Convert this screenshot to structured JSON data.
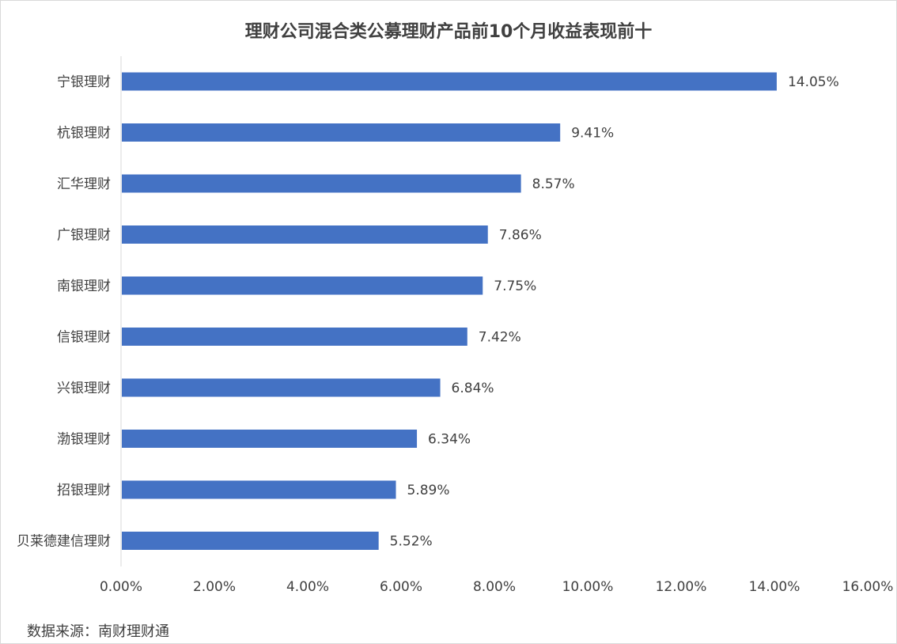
{
  "chart_data": {
    "type": "bar",
    "orientation": "horizontal",
    "title": "理财公司混合类公募理财产品前10个月收益表现前十",
    "categories": [
      "宁银理财",
      "杭银理财",
      "汇华理财",
      "广银理财",
      "南银理财",
      "信银理财",
      "兴银理财",
      "渤银理财",
      "招银理财",
      "贝莱德建信理财"
    ],
    "values": [
      14.05,
      9.41,
      8.57,
      7.86,
      7.75,
      7.42,
      6.84,
      6.34,
      5.89,
      5.52
    ],
    "value_labels": [
      "14.05%",
      "9.41%",
      "8.57%",
      "7.86%",
      "7.75%",
      "7.42%",
      "6.84%",
      "6.34%",
      "5.89%",
      "5.52%"
    ],
    "xlim": [
      0,
      16
    ],
    "xticks": [
      0,
      2,
      4,
      6,
      8,
      10,
      12,
      14,
      16
    ],
    "xtick_labels": [
      "0.00%",
      "2.00%",
      "4.00%",
      "6.00%",
      "8.00%",
      "10.00%",
      "12.00%",
      "14.00%",
      "16.00%"
    ],
    "xlabel": "",
    "ylabel": "",
    "grid": false,
    "legend": "none",
    "bar_color": "#4472C4"
  },
  "source_note": "数据来源：南财理财通"
}
